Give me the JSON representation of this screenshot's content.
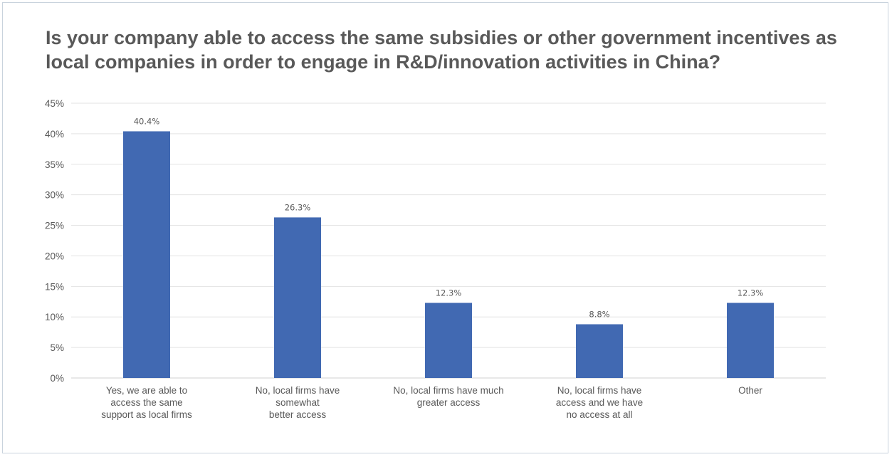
{
  "chart_data": {
    "type": "bar",
    "title": "Is your company able to access the same subsidies or other government incentives as local companies in order to engage in R&D/innovation activities in China?",
    "xlabel": "",
    "ylabel": "",
    "ylim": [
      0,
      45
    ],
    "yticks": [
      "0%",
      "5%",
      "10%",
      "15%",
      "20%",
      "25%",
      "30%",
      "35%",
      "40%",
      "45%"
    ],
    "categories": [
      [
        "Yes, we are able to",
        "access the same",
        "support as local firms"
      ],
      [
        "No, local firms have",
        "somewhat",
        "better access"
      ],
      [
        "No, local firms have much",
        "greater access"
      ],
      [
        "No, local firms have",
        "access and we have",
        "no access at all"
      ],
      [
        "Other"
      ]
    ],
    "values": [
      40.4,
      26.3,
      12.3,
      8.8,
      12.3
    ],
    "data_labels": [
      "40.4%",
      "26.3%",
      "12.3%",
      "8.8%",
      "12.3%"
    ],
    "bar_color": "#4169b2",
    "grid": true,
    "legend": "none"
  }
}
